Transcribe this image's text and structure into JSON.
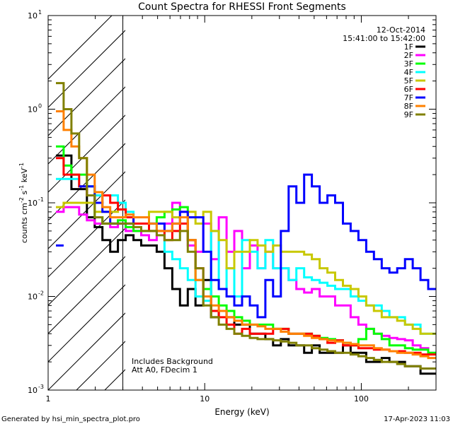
{
  "chart_data": {
    "type": "line",
    "title": "Count Spectra for RHESSI Front Segments",
    "xlabel": "Energy (keV)",
    "ylabel": "counts cm-2 s-1 keV-1",
    "ylabel_parts": {
      "base": "counts cm",
      "e1": "-2",
      "s": " s",
      "e2": "-1",
      "kev": " keV",
      "e3": "-1"
    },
    "xscale": "log",
    "yscale": "log",
    "xlim": [
      1,
      300
    ],
    "ylim": [
      0.001,
      10
    ],
    "x_ticks": [
      {
        "value": 1,
        "label": "1"
      },
      {
        "value": 10,
        "label": "10"
      },
      {
        "value": 100,
        "label": "100"
      }
    ],
    "y_ticks": [
      {
        "value": 0.001,
        "base": "10",
        "exp": "-3"
      },
      {
        "value": 0.01,
        "base": "10",
        "exp": "-2"
      },
      {
        "value": 0.1,
        "base": "10",
        "exp": "-1"
      },
      {
        "value": 1,
        "base": "10",
        "exp": "0"
      },
      {
        "value": 10,
        "base": "10",
        "exp": "1"
      }
    ],
    "date": "12-Oct-2014",
    "time_range": "15:41:00 to 15:42:00",
    "hatch_xmax": 3,
    "annotations": [
      "Includes Background",
      "Att A0, FDecim 1"
    ],
    "series": [
      {
        "name": "1F",
        "color": "#000000",
        "values": [
          null,
          0.32,
          0.32,
          0.14,
          0.14,
          0.07,
          0.055,
          0.04,
          0.03,
          0.04,
          0.045,
          0.04,
          0.035,
          0.035,
          0.03,
          0.02,
          0.012,
          0.008,
          0.012,
          0.008,
          0.015,
          0.006,
          0.007,
          0.006,
          0.005,
          0.005,
          0.004,
          0.004,
          0.0035,
          0.003,
          0.0035,
          0.003,
          0.003,
          0.0025,
          0.003,
          0.0025,
          0.0025,
          0.0025,
          0.003,
          0.0025,
          0.0025,
          0.002,
          0.002,
          0.0022,
          0.002,
          0.002,
          0.0018,
          0.0018,
          0.0015,
          0.0015
        ]
      },
      {
        "name": "2F",
        "color": "#ff00ff",
        "values": [
          null,
          0.08,
          0.09,
          0.09,
          0.075,
          0.065,
          0.06,
          0.06,
          0.055,
          0.06,
          0.05,
          0.05,
          0.045,
          0.04,
          0.05,
          0.06,
          0.1,
          0.08,
          0.035,
          0.03,
          0.06,
          0.025,
          0.07,
          0.03,
          0.05,
          0.02,
          0.035,
          0.02,
          0.03,
          0.02,
          0.02,
          0.015,
          0.012,
          0.011,
          0.012,
          0.01,
          0.01,
          0.008,
          0.008,
          0.006,
          0.005,
          0.0045,
          0.004,
          0.0038,
          0.0036,
          0.0035,
          0.0034,
          0.003,
          0.0028,
          0.0025
        ]
      },
      {
        "name": "3F",
        "color": "#00ff00",
        "values": [
          null,
          0.4,
          0.25,
          0.2,
          0.2,
          0.15,
          0.07,
          0.06,
          0.06,
          0.065,
          0.055,
          0.05,
          0.05,
          0.05,
          0.07,
          0.08,
          0.085,
          0.09,
          0.04,
          0.015,
          0.012,
          0.01,
          0.008,
          0.007,
          0.006,
          0.0055,
          0.005,
          0.005,
          0.005,
          0.0045,
          0.0045,
          0.004,
          0.004,
          0.004,
          0.0038,
          0.0036,
          0.0035,
          0.0034,
          0.0032,
          0.003,
          0.0035,
          0.0045,
          0.004,
          0.0035,
          0.003,
          0.003,
          0.0028,
          0.0027,
          0.0027,
          0.0025
        ]
      },
      {
        "name": "4F",
        "color": "#00ffff",
        "values": [
          null,
          0.18,
          0.18,
          0.18,
          0.15,
          0.15,
          0.12,
          0.12,
          0.12,
          0.1,
          0.08,
          0.07,
          0.07,
          0.06,
          0.05,
          0.03,
          0.025,
          0.02,
          0.015,
          0.01,
          0.009,
          0.05,
          0.012,
          0.02,
          0.01,
          0.04,
          0.03,
          0.02,
          0.04,
          0.02,
          0.02,
          0.015,
          0.02,
          0.016,
          0.015,
          0.014,
          0.013,
          0.012,
          0.012,
          0.01,
          0.009,
          0.008,
          0.008,
          0.007,
          0.006,
          0.006,
          0.005,
          0.005,
          0.004,
          0.004
        ]
      },
      {
        "name": "5F",
        "color": "#c8c800",
        "values": [
          null,
          0.09,
          0.1,
          0.1,
          0.1,
          0.1,
          0.08,
          0.08,
          0.08,
          0.085,
          0.07,
          0.07,
          0.07,
          0.08,
          0.08,
          0.08,
          0.07,
          0.07,
          0.08,
          0.06,
          0.08,
          0.05,
          0.04,
          0.02,
          0.03,
          0.03,
          0.04,
          0.035,
          0.03,
          0.035,
          0.03,
          0.03,
          0.03,
          0.028,
          0.025,
          0.02,
          0.018,
          0.015,
          0.013,
          0.012,
          0.01,
          0.008,
          0.007,
          0.006,
          0.006,
          0.0055,
          0.005,
          0.0045,
          0.004,
          0.004
        ]
      },
      {
        "name": "6F",
        "color": "#ff0000",
        "values": [
          null,
          0.3,
          0.2,
          0.2,
          0.15,
          0.12,
          0.1,
          0.12,
          0.1,
          0.085,
          0.07,
          0.06,
          0.06,
          0.05,
          0.05,
          0.04,
          0.05,
          0.06,
          0.04,
          0.02,
          0.01,
          0.007,
          0.006,
          0.005,
          0.004,
          0.0045,
          0.004,
          0.004,
          0.004,
          0.0045,
          0.0045,
          0.004,
          0.004,
          0.004,
          0.0038,
          0.0035,
          0.0032,
          0.0034,
          0.003,
          0.003,
          0.0028,
          0.0028,
          0.0027,
          0.0027,
          0.0026,
          0.0026,
          0.0025,
          0.0025,
          0.0024,
          0.0024
        ]
      },
      {
        "name": "7F",
        "color": "#0000ff",
        "values": [
          null,
          0.035,
          null,
          null,
          0.15,
          0.15,
          0.1,
          0.08,
          0.06,
          0.06,
          0.06,
          0.07,
          0.07,
          0.06,
          0.06,
          0.05,
          0.06,
          0.08,
          0.07,
          0.07,
          0.03,
          0.015,
          0.012,
          0.01,
          0.008,
          0.01,
          0.008,
          0.006,
          0.015,
          0.01,
          0.05,
          0.15,
          0.1,
          0.2,
          0.15,
          0.1,
          0.12,
          0.1,
          0.06,
          0.05,
          0.04,
          0.03,
          0.025,
          0.02,
          0.018,
          0.02,
          0.025,
          0.02,
          0.015,
          0.012
        ]
      },
      {
        "name": "8F",
        "color": "#ff8000",
        "values": [
          null,
          0.95,
          0.6,
          0.4,
          0.3,
          0.2,
          0.13,
          0.09,
          0.07,
          0.07,
          0.075,
          0.07,
          0.07,
          0.06,
          0.05,
          0.05,
          0.06,
          0.07,
          0.04,
          0.015,
          0.01,
          0.008,
          0.007,
          0.006,
          0.0055,
          0.005,
          0.005,
          0.0048,
          0.0045,
          0.0045,
          0.0042,
          0.004,
          0.004,
          0.0038,
          0.0036,
          0.0035,
          0.0034,
          0.0033,
          0.0032,
          0.0031,
          0.003,
          0.003,
          0.0028,
          0.0027,
          0.0026,
          0.0025,
          0.0025,
          0.0024,
          0.0023,
          0.0022
        ]
      },
      {
        "name": "9F",
        "color": "#808000",
        "values": [
          null,
          1.9,
          1.0,
          0.55,
          0.3,
          0.12,
          0.07,
          0.06,
          0.06,
          0.06,
          0.06,
          0.055,
          0.05,
          0.05,
          0.045,
          0.04,
          0.04,
          0.05,
          0.03,
          0.02,
          0.008,
          0.006,
          0.005,
          0.0045,
          0.004,
          0.0038,
          0.0036,
          0.0035,
          0.0035,
          0.0034,
          0.0033,
          0.0032,
          0.003,
          0.003,
          0.0028,
          0.0027,
          0.0026,
          0.0025,
          0.0025,
          0.0024,
          0.0023,
          0.0022,
          0.0021,
          0.002,
          0.002,
          0.0019,
          0.0018,
          0.0018,
          0.0017,
          0.0017
        ]
      }
    ]
  },
  "footer": {
    "generated_by": "Generated by hsi_min_spectra_plot.pro",
    "timestamp": "17-Apr-2023 11:03"
  }
}
